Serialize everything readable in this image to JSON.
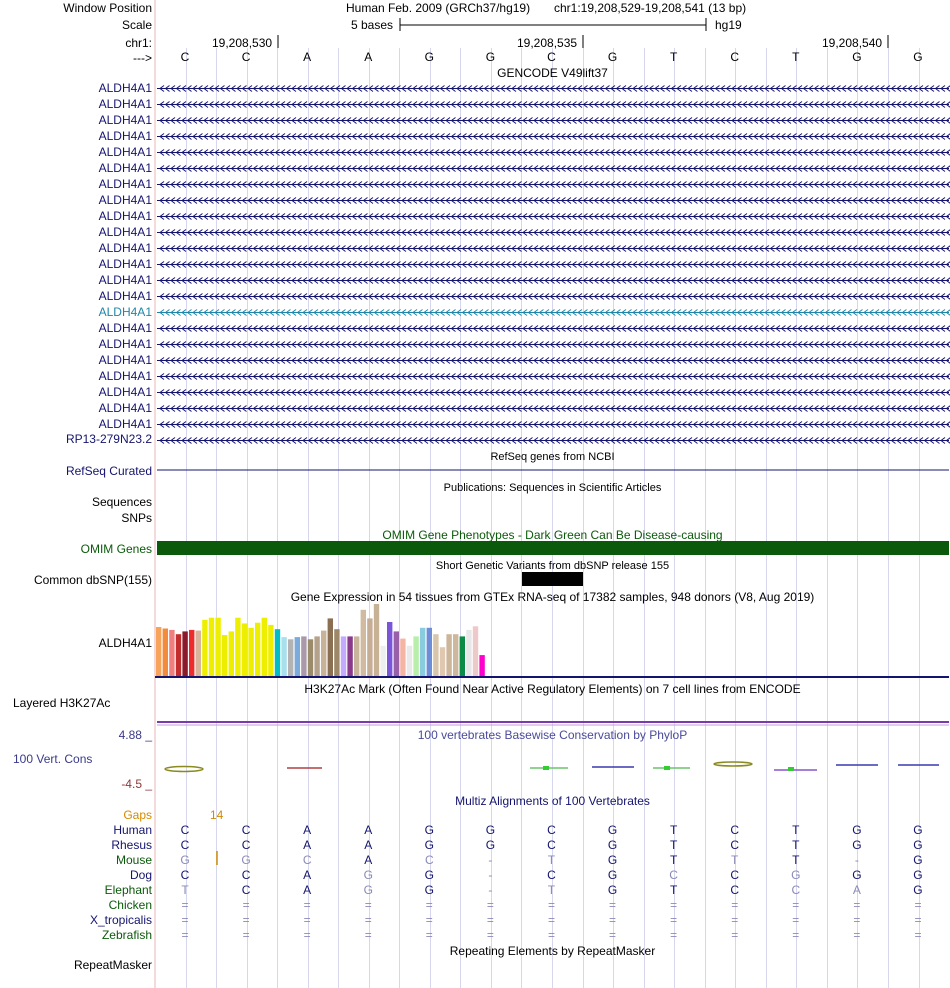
{
  "header": {
    "window_position_label": "Window Position",
    "assembly_text": "Human Feb. 2009 (GRCh37/hg19)",
    "position_text": "chr1:19,208,529-19,208,541 (13 bp)",
    "scale_label": "Scale",
    "scale_bar_text": "5 bases",
    "db_label": "hg19",
    "chrom_label": "chr1:",
    "strand_label": "--->",
    "tick_labels": [
      "19,208,530",
      "19,208,535",
      "19,208,540"
    ]
  },
  "dna_bases": [
    "C",
    "C",
    "A",
    "A",
    "G",
    "G",
    "C",
    "G",
    "T",
    "C",
    "T",
    "G",
    "G"
  ],
  "tracks": {
    "gencode": {
      "title": "GENCODE V49lift37",
      "items": [
        "ALDH4A1",
        "ALDH4A1",
        "ALDH4A1",
        "ALDH4A1",
        "ALDH4A1",
        "ALDH4A1",
        "ALDH4A1",
        "ALDH4A1",
        "ALDH4A1",
        "ALDH4A1",
        "ALDH4A1",
        "ALDH4A1",
        "ALDH4A1",
        "ALDH4A1",
        "ALDH4A1",
        "ALDH4A1",
        "ALDH4A1",
        "ALDH4A1",
        "ALDH4A1",
        "ALDH4A1",
        "ALDH4A1",
        "ALDH4A1"
      ],
      "highlighted_index": 14,
      "last_item": "RP13-279N23.2",
      "color": "#14146e",
      "highlight_color": "#1e86a8"
    },
    "refseq": {
      "title": "RefSeq genes from NCBI",
      "label": "RefSeq Curated"
    },
    "publications": {
      "title": "Publications: Sequences in Scientific Articles",
      "label_line1": "Sequences",
      "label_line2": "SNPs"
    },
    "omim": {
      "title": "OMIM Gene Phenotypes - Dark Green Can Be Disease-causing",
      "label": "OMIM Genes",
      "color": "#0b5a0b"
    },
    "dbsnp": {
      "title": "Short Genetic Variants from dbSNP release 155",
      "label": "Common dbSNP(155)"
    },
    "gtex": {
      "title": "Gene Expression in 54 tissues from GTEx RNA-seq of 17382 samples, 948 donors (V8, Aug 2019)",
      "label": "ALDH4A1",
      "bars": [
        {
          "v": 0.68,
          "c": "#f7a35b"
        },
        {
          "v": 0.66,
          "c": "#f38a3c"
        },
        {
          "v": 0.64,
          "c": "#ef7f7f"
        },
        {
          "v": 0.58,
          "c": "#c22e2e"
        },
        {
          "v": 0.62,
          "c": "#8b1a2a"
        },
        {
          "v": 0.64,
          "c": "#ee2c2c"
        },
        {
          "v": 0.63,
          "c": "#d7b49a"
        },
        {
          "v": 0.78,
          "c": "#eeee00"
        },
        {
          "v": 0.81,
          "c": "#eeee00"
        },
        {
          "v": 0.81,
          "c": "#eeee00"
        },
        {
          "v": 0.57,
          "c": "#eeee00"
        },
        {
          "v": 0.62,
          "c": "#eeee00"
        },
        {
          "v": 0.81,
          "c": "#eeee00"
        },
        {
          "v": 0.73,
          "c": "#eeee00"
        },
        {
          "v": 0.67,
          "c": "#eeee00"
        },
        {
          "v": 0.74,
          "c": "#eeee00"
        },
        {
          "v": 0.81,
          "c": "#eeee00"
        },
        {
          "v": 0.71,
          "c": "#eeee00"
        },
        {
          "v": 0.65,
          "c": "#00bcc4"
        },
        {
          "v": 0.54,
          "c": "#a9e0ee"
        },
        {
          "v": 0.51,
          "c": "#b3b3b3"
        },
        {
          "v": 0.54,
          "c": "#7aabdb"
        },
        {
          "v": 0.55,
          "c": "#aa99aa"
        },
        {
          "v": 0.51,
          "c": "#9a8b6a"
        },
        {
          "v": 0.55,
          "c": "#b5a28d"
        },
        {
          "v": 0.63,
          "c": "#c8b396"
        },
        {
          "v": 0.8,
          "c": "#8b6f52"
        },
        {
          "v": 0.65,
          "c": "#9c8868"
        },
        {
          "v": 0.55,
          "c": "#c4aaff"
        },
        {
          "v": 0.55,
          "c": "#8a3a8a"
        },
        {
          "v": 0.55,
          "c": "#c8b39c"
        },
        {
          "v": 0.92,
          "c": "#d1bba0"
        },
        {
          "v": 0.8,
          "c": "#c5ae95"
        },
        {
          "v": 1.0,
          "c": "#c8b296"
        },
        {
          "v": 0.42,
          "c": "#eeeeee"
        },
        {
          "v": 0.75,
          "c": "#7b55d8"
        },
        {
          "v": 0.62,
          "c": "#9960aa"
        },
        {
          "v": 0.52,
          "c": "#f5b5a5"
        },
        {
          "v": 0.42,
          "c": "#e9e9e9"
        },
        {
          "v": 0.55,
          "c": "#b7eeaa"
        },
        {
          "v": 0.67,
          "c": "#88ccdd"
        },
        {
          "v": 0.67,
          "c": "#6d8dd8"
        },
        {
          "v": 0.58,
          "c": "#d7c6ab"
        },
        {
          "v": 0.4,
          "c": "#e0c8b0"
        },
        {
          "v": 0.58,
          "c": "#cbb69b"
        },
        {
          "v": 0.58,
          "c": "#cdb89c"
        },
        {
          "v": 0.55,
          "c": "#0b8b45"
        },
        {
          "v": 0.64,
          "c": "#e7e7e7"
        },
        {
          "v": 0.69,
          "c": "#eec9c9"
        },
        {
          "v": 0.29,
          "c": "#ff00cc"
        }
      ]
    },
    "h3k27ac": {
      "title": "H3K27Ac Mark (Often Found Near Active Regulatory Elements) on 7 cell lines from ENCODE",
      "label": "Layered H3K27Ac"
    },
    "phylop": {
      "title": "100 vertebrates Basewise Conservation by PhyloP",
      "label": "100 Vert. Cons",
      "max_label": "4.88 _",
      "min_label": "-4.5 _"
    },
    "multiz": {
      "title": "Multiz Alignments of 100 Vertebrates",
      "gaps_label": "Gaps",
      "gaps_count": "14",
      "species": [
        {
          "name": "Human",
          "color": "#14146e",
          "bases": [
            "C",
            "C",
            "A",
            "A",
            "G",
            "G",
            "C",
            "G",
            "T",
            "C",
            "T",
            "G",
            "G"
          ],
          "shade": [
            2,
            2,
            2,
            2,
            2,
            2,
            2,
            2,
            2,
            2,
            2,
            2,
            2
          ]
        },
        {
          "name": "Rhesus",
          "color": "#14146e",
          "bases": [
            "C",
            "C",
            "A",
            "A",
            "G",
            "G",
            "C",
            "G",
            "T",
            "C",
            "T",
            "G",
            "G"
          ],
          "shade": [
            2,
            2,
            2,
            2,
            2,
            2,
            2,
            2,
            2,
            2,
            2,
            2,
            2
          ]
        },
        {
          "name": "Mouse",
          "color": "#0b5a0b",
          "bases": [
            "G",
            "G",
            "C",
            "A",
            "C",
            "-",
            "T",
            "G",
            "T",
            "T",
            "T",
            "-",
            "G"
          ],
          "shade": [
            1,
            1,
            1,
            2,
            1,
            1,
            1,
            2,
            2,
            1,
            2,
            1,
            2
          ]
        },
        {
          "name": "Dog",
          "color": "#14146e",
          "bases": [
            "C",
            "C",
            "A",
            "G",
            "G",
            "-",
            "C",
            "G",
            "C",
            "C",
            "G",
            "G",
            "G"
          ],
          "shade": [
            2,
            2,
            2,
            1,
            2,
            1,
            2,
            2,
            1,
            2,
            1,
            2,
            2
          ]
        },
        {
          "name": "Elephant",
          "color": "#0b5a0b",
          "bases": [
            "T",
            "C",
            "A",
            "G",
            "G",
            "-",
            "T",
            "G",
            "T",
            "C",
            "C",
            "A",
            "G"
          ],
          "shade": [
            1,
            2,
            2,
            1,
            2,
            1,
            1,
            2,
            2,
            2,
            1,
            1,
            2
          ]
        },
        {
          "name": "Chicken",
          "color": "#0b5a0b",
          "bases": [
            "=",
            "=",
            "=",
            "=",
            "=",
            "=",
            "=",
            "=",
            "=",
            "=",
            "=",
            "=",
            "="
          ],
          "shade": [
            0,
            0,
            0,
            0,
            0,
            0,
            0,
            0,
            0,
            0,
            0,
            0,
            0
          ]
        },
        {
          "name": "X_tropicalis",
          "color": "#14146e",
          "bases": [
            "=",
            "=",
            "=",
            "=",
            "=",
            "=",
            "=",
            "=",
            "=",
            "=",
            "=",
            "=",
            "="
          ],
          "shade": [
            0,
            0,
            0,
            0,
            0,
            0,
            0,
            0,
            0,
            0,
            0,
            0,
            0
          ]
        },
        {
          "name": "Zebrafish",
          "color": "#0b5a0b",
          "bases": [
            "=",
            "=",
            "=",
            "=",
            "=",
            "=",
            "=",
            "=",
            "=",
            "=",
            "=",
            "=",
            "="
          ],
          "shade": [
            0,
            0,
            0,
            0,
            0,
            0,
            0,
            0,
            0,
            0,
            0,
            0,
            0
          ]
        }
      ]
    },
    "repeatmasker": {
      "title": "Repeating Elements by RepeatMasker",
      "label": "RepeatMasker"
    }
  },
  "colors": {
    "navy": "#14146e",
    "dark_green": "#0b5a0b",
    "orange": "#d48a00",
    "guide_line": "#d6d6ee",
    "left_border": "#e9b4b4",
    "h3k27ac_line": "#7a3aa8"
  }
}
